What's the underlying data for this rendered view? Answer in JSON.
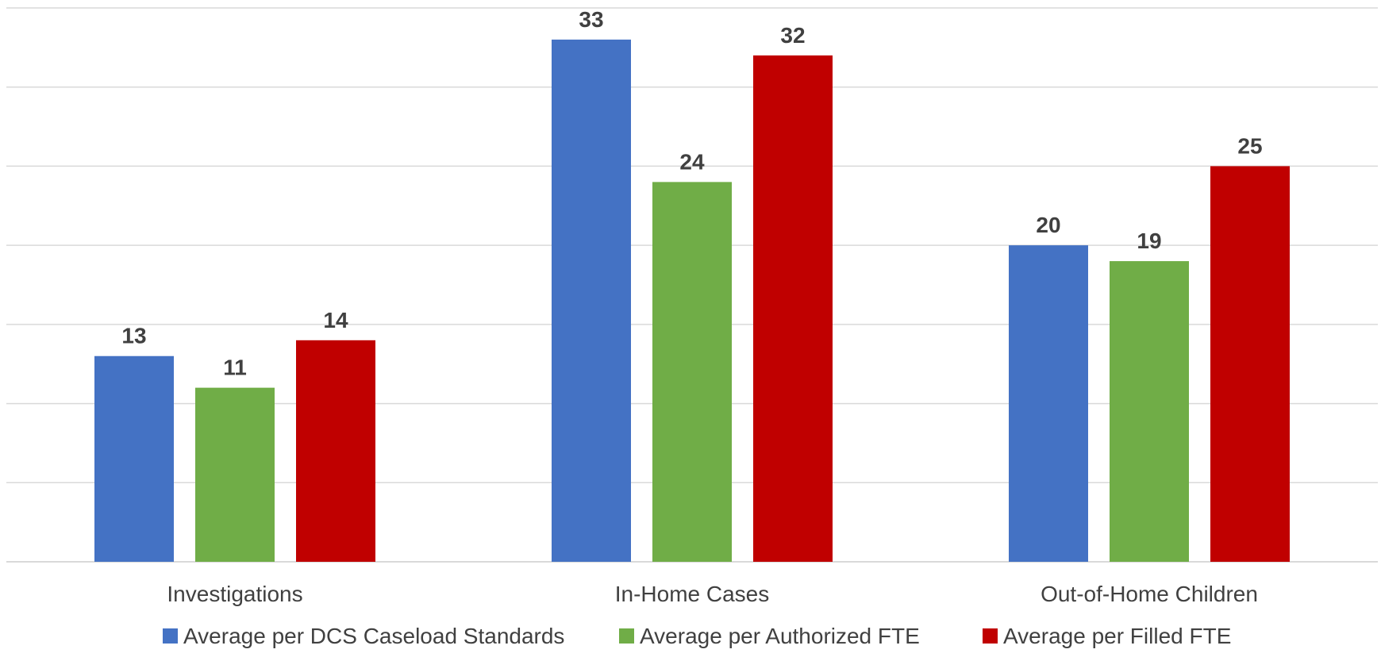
{
  "chart_data": {
    "type": "bar",
    "categories": [
      "Investigations",
      "In-Home Cases",
      "Out-of-Home Children"
    ],
    "series": [
      {
        "name": "Average per DCS Caseload Standards",
        "values": [
          13,
          33,
          20
        ],
        "color": "#4472c4"
      },
      {
        "name": "Average per Authorized FTE",
        "values": [
          11,
          24,
          19
        ],
        "color": "#70ad47"
      },
      {
        "name": "Average per Filled FTE",
        "values": [
          14,
          32,
          25
        ],
        "color": "#c00000"
      }
    ],
    "ylim": [
      0,
      35
    ],
    "y_grid_step": 5,
    "y_tick_labels_shown": false,
    "grid": true,
    "legend_position": "bottom",
    "data_labels": true
  }
}
